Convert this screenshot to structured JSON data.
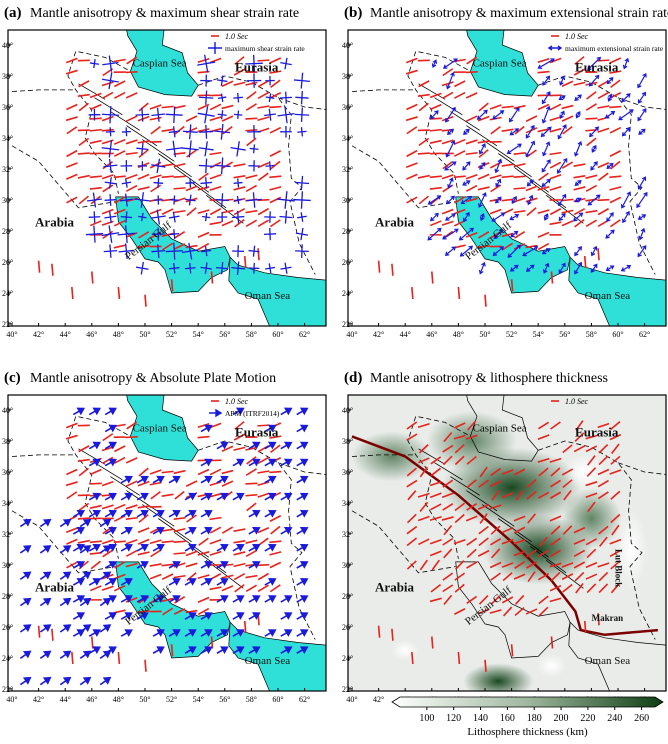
{
  "map_axes": {
    "lon_ticks": [
      "40°",
      "42°",
      "44°",
      "46°",
      "48°",
      "50°",
      "52°",
      "54°",
      "56°",
      "58°",
      "60°",
      "62°"
    ],
    "lat_ticks": [
      "22°",
      "24°",
      "26°",
      "28°",
      "30°",
      "32°",
      "34°",
      "36°",
      "38°",
      "40°"
    ]
  },
  "panels": [
    {
      "label": "(a)",
      "title": "Mantle anisotropy & maximum shear strain rate",
      "kind": "shear",
      "legend": [
        "1.0 Sec",
        "maximum shear strain rate"
      ],
      "places": {
        "caspian": "Caspian Sea",
        "eurasia": "Eurasia",
        "arabia": "Arabia",
        "gulf": "Persian Gulf",
        "oman": "Oman Sea"
      }
    },
    {
      "label": "(b)",
      "title": "Mantle anisotropy & maximum extensional strain rate",
      "kind": "ext",
      "legend": [
        "1.0 Sec",
        "maximum extensional strain rate"
      ],
      "places": {
        "caspian": "Caspian Sea",
        "eurasia": "Eurasia",
        "arabia": "Arabia",
        "gulf": "Persian Gulf",
        "oman": "Oman Sea"
      }
    },
    {
      "label": "(c)",
      "title": "Mantle anisotropy & Absolute Plate Motion",
      "kind": "apm",
      "legend": [
        "1.0 Sec",
        "APM (ITRF2014)"
      ],
      "places": {
        "caspian": "Caspian Sea",
        "eurasia": "Eurasia",
        "arabia": "Arabia",
        "gulf": "Persian Gulf",
        "oman": "Oman Sea"
      }
    },
    {
      "label": "(d)",
      "title": "Mantle anisotropy & lithosphere thickness",
      "kind": "lith",
      "legend": [
        "1.0 Sec"
      ],
      "places": {
        "caspian": "Caspian Sea",
        "eurasia": "Eurasia",
        "arabia": "Arabia",
        "gulf": "Persian Gulf",
        "oman": "Oman Sea",
        "makran": "Makran",
        "lut": "Lut Block"
      }
    }
  ],
  "colorbar": {
    "label": "Lithosphere thickness (km)",
    "lim": [
      80,
      270
    ],
    "ticks": [
      100,
      120,
      140,
      160,
      180,
      200,
      220,
      240,
      260
    ]
  }
}
